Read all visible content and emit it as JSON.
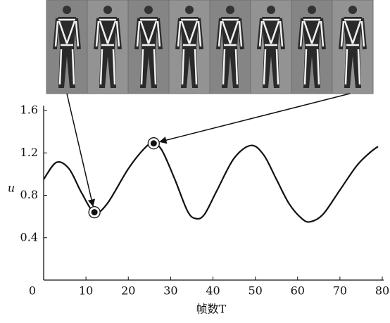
{
  "chart_data": {
    "type": "line",
    "xlabel": "帧数T",
    "ylabel": "u",
    "x": [
      0,
      3,
      6,
      9,
      12,
      15,
      20,
      24,
      26,
      28,
      31,
      34,
      36,
      38,
      41,
      45,
      49,
      52,
      55,
      58,
      61,
      63,
      66,
      70,
      74,
      77,
      79
    ],
    "values": [
      0.95,
      1.11,
      1.05,
      0.82,
      0.64,
      0.72,
      1.05,
      1.25,
      1.29,
      1.22,
      0.95,
      0.65,
      0.58,
      0.62,
      0.85,
      1.15,
      1.27,
      1.18,
      0.95,
      0.72,
      0.58,
      0.55,
      0.62,
      0.85,
      1.08,
      1.2,
      1.26
    ],
    "color": "#111111",
    "highlights": [
      {
        "x": 12,
        "y": 0.64
      },
      {
        "x": 26,
        "y": 1.29
      }
    ],
    "xlim": [
      0,
      80
    ],
    "xticks": [
      0,
      10,
      20,
      30,
      40,
      50,
      60,
      70,
      80
    ],
    "ylim": [
      0,
      1.6
    ],
    "yticks": [
      0.4,
      0.8,
      1.2,
      1.6
    ]
  }
}
